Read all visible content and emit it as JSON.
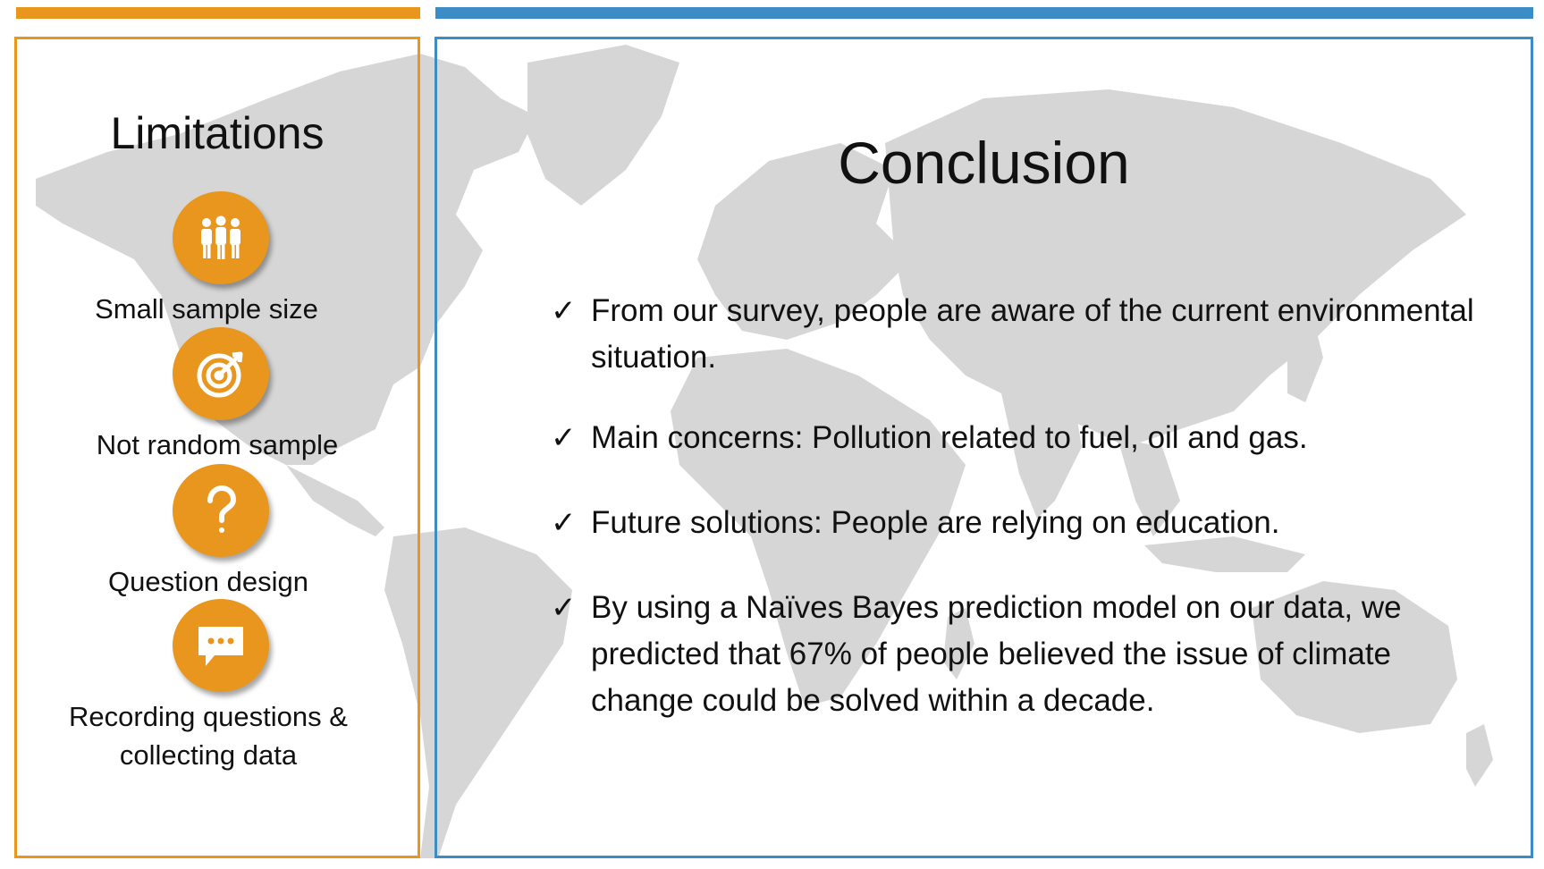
{
  "colors": {
    "accent_orange": "#E8961E",
    "accent_blue": "#3C8DC5",
    "map_gray": "#D6D6D6"
  },
  "limitations": {
    "title": "Limitations",
    "items": [
      {
        "icon": "people-icon",
        "label": "Small sample size"
      },
      {
        "icon": "target-icon",
        "label": "Not random sample"
      },
      {
        "icon": "question-mark-icon",
        "label": "Question design"
      },
      {
        "icon": "chat-bubble-icon",
        "label": "Recording questions & collecting data"
      }
    ]
  },
  "conclusion": {
    "title": "Conclusion",
    "items": [
      {
        "mark": "✓",
        "text": "From our survey, people are aware of the current environmental situation."
      },
      {
        "mark": "✓",
        "text": "Main concerns: Pollution related to fuel, oil and gas."
      },
      {
        "mark": "✓",
        "text": "Future solutions: People are relying on education."
      },
      {
        "mark": "✓",
        "text": "By using a Naïves Bayes prediction model on our data, we predicted that 67% of people believed the issue of climate change could be solved within a decade."
      }
    ]
  }
}
